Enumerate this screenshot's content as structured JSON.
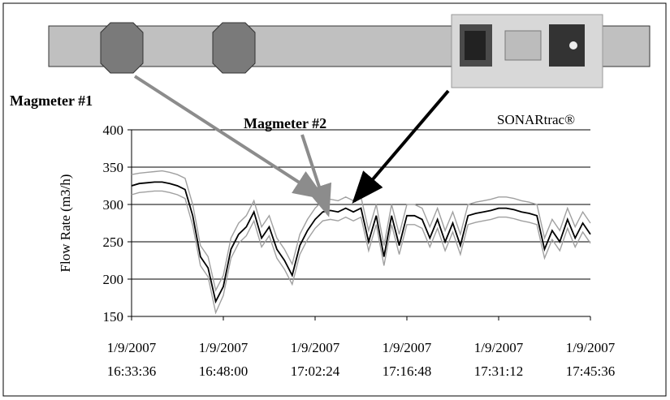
{
  "chart_data": {
    "type": "line",
    "annotations": [
      "Magmeter #1",
      "Magmeter #2",
      "SONARtrac®"
    ],
    "y_label": "Flow Rate (m3/h)",
    "x": [
      "1/9/2007 16:33:36",
      "1/9/2007 16:34:48",
      "1/9/2007 16:36:00",
      "1/9/2007 16:37:12",
      "1/9/2007 16:38:24",
      "1/9/2007 16:39:36",
      "1/9/2007 16:40:48",
      "1/9/2007 16:42:00",
      "1/9/2007 16:43:12",
      "1/9/2007 16:44:24",
      "1/9/2007 16:45:36",
      "1/9/2007 16:46:48",
      "1/9/2007 16:48:00",
      "1/9/2007 16:49:12",
      "1/9/2007 16:50:24",
      "1/9/2007 16:51:36",
      "1/9/2007 16:52:48",
      "1/9/2007 16:54:00",
      "1/9/2007 16:55:12",
      "1/9/2007 16:56:24",
      "1/9/2007 16:57:36",
      "1/9/2007 16:58:48",
      "1/9/2007 17:00:00",
      "1/9/2007 17:01:12",
      "1/9/2007 17:02:24",
      "1/9/2007 17:03:36",
      "1/9/2007 17:04:48",
      "1/9/2007 17:06:00",
      "1/9/2007 17:07:12",
      "1/9/2007 17:08:24",
      "1/9/2007 17:09:36",
      "1/9/2007 17:10:48",
      "1/9/2007 17:12:00",
      "1/9/2007 17:13:12",
      "1/9/2007 17:14:24",
      "1/9/2007 17:15:36",
      "1/9/2007 17:16:48",
      "1/9/2007 17:18:00",
      "1/9/2007 17:19:12",
      "1/9/2007 17:20:24",
      "1/9/2007 17:21:36",
      "1/9/2007 17:22:48",
      "1/9/2007 17:24:00",
      "1/9/2007 17:25:12",
      "1/9/2007 17:26:24",
      "1/9/2007 17:27:36",
      "1/9/2007 17:28:48",
      "1/9/2007 17:30:00",
      "1/9/2007 17:31:12",
      "1/9/2007 17:32:24",
      "1/9/2007 17:33:36",
      "1/9/2007 17:34:48",
      "1/9/2007 17:36:00",
      "1/9/2007 17:37:12",
      "1/9/2007 17:38:24",
      "1/9/2007 17:39:36",
      "1/9/2007 17:40:48",
      "1/9/2007 17:42:00",
      "1/9/2007 17:43:12",
      "1/9/2007 17:44:24",
      "1/9/2007 17:45:36"
    ],
    "series": [
      {
        "color": "#a0a0a0",
        "values": [
          340,
          342,
          343,
          344,
          345,
          343,
          340,
          335,
          300,
          245,
          230,
          185,
          205,
          255,
          275,
          285,
          305,
          270,
          285,
          255,
          240,
          220,
          260,
          280,
          295,
          305,
          307,
          305,
          310,
          305,
          310,
          265,
          300,
          245,
          300,
          260,
          300,
          300,
          295,
          270,
          295,
          265,
          290,
          260,
          300,
          303,
          305,
          307,
          310,
          310,
          308,
          305,
          303,
          300,
          255,
          280,
          265,
          295,
          270,
          290,
          275
        ]
      },
      {
        "color": "#a0a0a0",
        "values": [
          313,
          316,
          317,
          318,
          318,
          316,
          313,
          308,
          272,
          218,
          203,
          155,
          178,
          228,
          248,
          258,
          278,
          243,
          258,
          228,
          213,
          193,
          233,
          253,
          268,
          278,
          280,
          278,
          283,
          278,
          283,
          238,
          273,
          218,
          273,
          233,
          273,
          273,
          268,
          243,
          268,
          238,
          263,
          233,
          273,
          276,
          278,
          280,
          283,
          283,
          281,
          278,
          276,
          273,
          228,
          253,
          238,
          268,
          243,
          263,
          248
        ]
      },
      {
        "color": "#000000",
        "values": [
          325,
          328,
          329,
          330,
          330,
          328,
          325,
          320,
          285,
          230,
          215,
          170,
          190,
          240,
          260,
          270,
          290,
          255,
          270,
          240,
          225,
          205,
          245,
          265,
          280,
          290,
          292,
          290,
          295,
          290,
          295,
          250,
          285,
          230,
          285,
          245,
          285,
          285,
          280,
          255,
          280,
          250,
          275,
          245,
          285,
          288,
          290,
          292,
          295,
          295,
          293,
          290,
          288,
          285,
          240,
          265,
          250,
          280,
          255,
          275,
          260
        ]
      }
    ],
    "xlim": [
      "1/9/2007 16:33:36",
      "1/9/2007 17:45:36"
    ],
    "xticks": [
      "1/9/2007 16:33:36",
      "1/9/2007 16:48:00",
      "1/9/2007 17:02:24",
      "1/9/2007 17:16:48",
      "1/9/2007 17:31:12",
      "1/9/2007 17:45:36"
    ],
    "ylim": [
      150,
      400
    ],
    "yticks": [
      150,
      200,
      250,
      300,
      350,
      400
    ],
    "grid": true
  }
}
